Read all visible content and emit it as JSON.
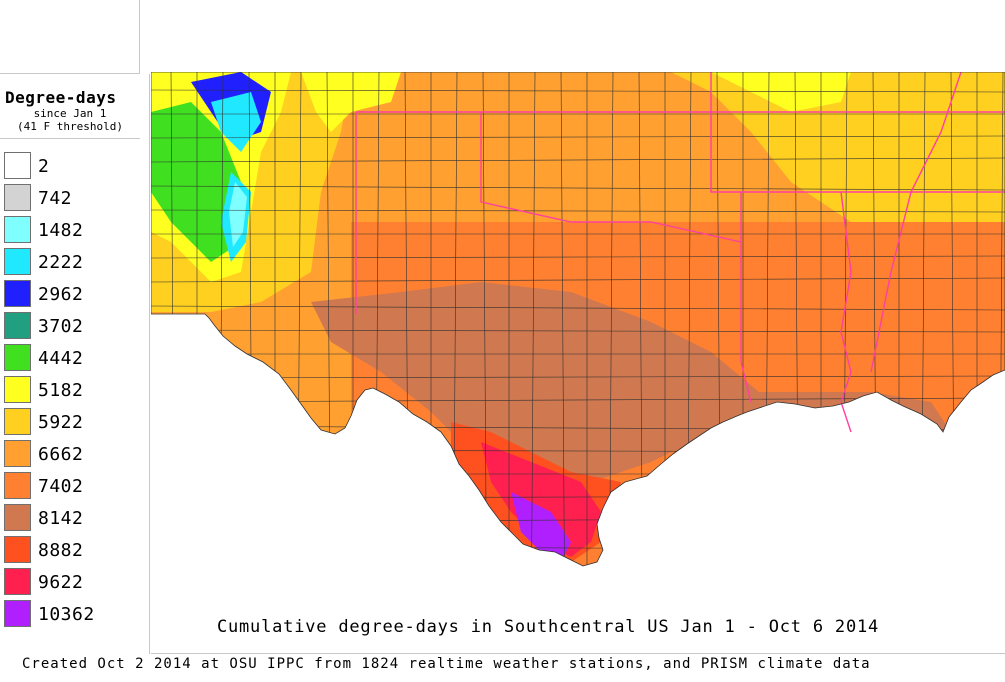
{
  "legend": {
    "title": "Degree-days",
    "subtitle_1": "since Jan 1",
    "subtitle_2": "(41 F threshold)",
    "items": [
      {
        "label": "2",
        "color": "#ffffff"
      },
      {
        "label": "742",
        "color": "#d3d3d3"
      },
      {
        "label": "1482",
        "color": "#7fffff"
      },
      {
        "label": "2222",
        "color": "#20e8ff"
      },
      {
        "label": "2962",
        "color": "#2020ff"
      },
      {
        "label": "3702",
        "color": "#20a080"
      },
      {
        "label": "4442",
        "color": "#40e020"
      },
      {
        "label": "5182",
        "color": "#ffff20"
      },
      {
        "label": "5922",
        "color": "#ffd020"
      },
      {
        "label": "6662",
        "color": "#ffa030"
      },
      {
        "label": "7402",
        "color": "#ff8030"
      },
      {
        "label": "8142",
        "color": "#d07850"
      },
      {
        "label": "8882",
        "color": "#ff5020"
      },
      {
        "label": "9622",
        "color": "#ff2050"
      },
      {
        "label": "10362",
        "color": "#b020ff"
      }
    ]
  },
  "map": {
    "title": "Cumulative degree-days in Southcentral US Jan 1 - Oct 6 2014",
    "state_border_color": "#ff40a0",
    "county_border_color": "#303030"
  },
  "footer": "Created Oct 2 2014 at OSU IPPC from 1824 realtime weather stations, and PRISM climate data"
}
